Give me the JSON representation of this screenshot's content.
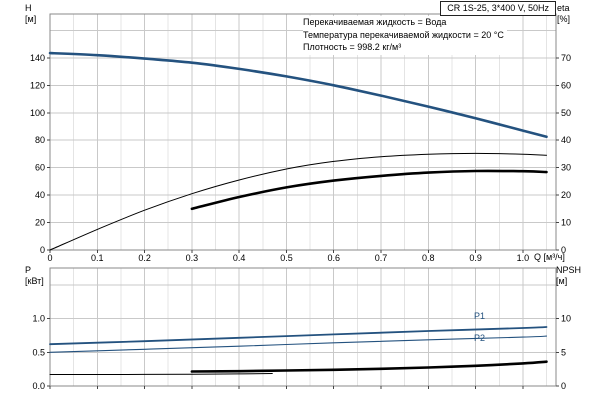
{
  "header": {
    "model": "CR 1S-25, 3*400 V, 50Hz"
  },
  "info_lines": [
    "Перекачиваемая жидкость = Вода",
    "Температура перекачиваемой жидкости = 20 °C",
    "Плотность = 998.2 кг/м³"
  ],
  "axis_labels": {
    "h": [
      "H",
      "[м]"
    ],
    "eta": [
      "eta",
      "[%]"
    ],
    "p": [
      "P",
      "[кВт]"
    ],
    "npsh": [
      "NPSH",
      "[м]"
    ],
    "q": "Q [м³/ч]"
  },
  "series_labels": {
    "p1": "P1",
    "p2": "P2"
  },
  "colors": {
    "curve_blue": "#24527f",
    "curve_black": "#000000",
    "grid_major": "#c9c9c9",
    "grid_minor": "#e4e4e4",
    "frame": "#8a8a8a",
    "tick": "#444444"
  },
  "chart_data": [
    {
      "type": "line",
      "title": "CR 1S-25, 3*400 V, 50Hz",
      "xlabel": "Q [м³/ч]",
      "ylabel_left": "H [м]",
      "ylabel_right": "eta [%]",
      "xlim": [
        0,
        1.07
      ],
      "ylim_left": [
        0,
        172
      ],
      "ylim_right": [
        0,
        86
      ],
      "grid": true,
      "x_ticks": {
        "values": [
          0,
          0.1,
          0.2,
          0.3,
          0.4,
          0.5,
          0.6,
          0.7,
          0.8,
          0.9,
          1.0
        ],
        "labels": [
          "0",
          "0.1",
          "0.2",
          "0.3",
          "0.4",
          "0.5",
          "0.6",
          "0.7",
          "0.8",
          "0.9",
          "1.0"
        ]
      },
      "left_ticks": {
        "values": [
          0,
          20,
          40,
          60,
          80,
          100,
          120,
          140
        ],
        "labels": [
          "0",
          "20",
          "40",
          "60",
          "80",
          "100",
          "120",
          "140"
        ]
      },
      "right_ticks": {
        "values": [
          0,
          10,
          20,
          30,
          40,
          50,
          60,
          70
        ],
        "labels": [
          "0",
          "10",
          "20",
          "30",
          "40",
          "50",
          "60",
          "70"
        ]
      },
      "series": [
        {
          "name": "H-curve",
          "axis": "left",
          "color": "#24527f",
          "width": 2.6,
          "x": [
            0,
            0.1,
            0.2,
            0.3,
            0.4,
            0.5,
            0.6,
            0.7,
            0.8,
            0.9,
            1.0,
            1.05
          ],
          "y": [
            143.5,
            142,
            139.5,
            136.5,
            132,
            126.5,
            120,
            112.5,
            104.5,
            96,
            87,
            82.5
          ]
        },
        {
          "name": "eta-pump",
          "axis": "right",
          "color": "#000000",
          "width": 1,
          "x": [
            0,
            0.1,
            0.2,
            0.3,
            0.4,
            0.5,
            0.6,
            0.7,
            0.8,
            0.9,
            1.0,
            1.05
          ],
          "y": [
            0,
            7.5,
            14.5,
            20.5,
            25.5,
            29.5,
            32.3,
            34,
            34.9,
            35.2,
            34.9,
            34.5
          ]
        },
        {
          "name": "eta-pump-plus-motor",
          "axis": "right",
          "color": "#000000",
          "width": 2.6,
          "x": [
            0.3,
            0.4,
            0.5,
            0.6,
            0.7,
            0.8,
            0.9,
            1.0,
            1.05
          ],
          "y": [
            15,
            19.3,
            22.8,
            25.3,
            27,
            28.2,
            28.8,
            28.7,
            28.4
          ]
        }
      ]
    },
    {
      "type": "line",
      "title": "",
      "xlabel": "",
      "ylabel_left": "P [кВт]",
      "ylabel_right": "NPSH [м]",
      "xlim": [
        0,
        1.07
      ],
      "ylim_left": [
        0,
        1.75
      ],
      "ylim_right": [
        0,
        17.5
      ],
      "grid": true,
      "x_ticks": {
        "values": [
          0,
          0.1,
          0.2,
          0.3,
          0.4,
          0.5,
          0.6,
          0.7,
          0.8,
          0.9,
          1.0
        ],
        "labels": []
      },
      "left_ticks": {
        "values": [
          0,
          0.5,
          1.0
        ],
        "labels": [
          "0.0",
          "0.5",
          "1.0"
        ]
      },
      "right_ticks": {
        "values": [
          0,
          5,
          10
        ],
        "labels": [
          "0",
          "5",
          "10"
        ]
      },
      "series": [
        {
          "name": "P1",
          "axis": "left",
          "color": "#24527f",
          "width": 1.8,
          "x": [
            0,
            0.2,
            0.4,
            0.6,
            0.8,
            1.0,
            1.05
          ],
          "y": [
            0.62,
            0.665,
            0.715,
            0.765,
            0.815,
            0.86,
            0.875
          ]
        },
        {
          "name": "P2",
          "axis": "left",
          "color": "#24527f",
          "width": 1.1,
          "x": [
            0,
            0.2,
            0.4,
            0.6,
            0.8,
            1.0,
            1.05
          ],
          "y": [
            0.5,
            0.545,
            0.59,
            0.64,
            0.685,
            0.725,
            0.74
          ]
        },
        {
          "name": "NPSH-thin",
          "axis": "right",
          "color": "#000000",
          "width": 1,
          "x": [
            0,
            0.1,
            0.2,
            0.3,
            0.4,
            0.47
          ],
          "y": [
            1.7,
            1.7,
            1.72,
            1.75,
            1.8,
            1.85
          ]
        },
        {
          "name": "NPSH",
          "axis": "right",
          "color": "#000000",
          "width": 2.6,
          "x": [
            0.3,
            0.4,
            0.5,
            0.6,
            0.7,
            0.8,
            0.9,
            1.0,
            1.05
          ],
          "y": [
            2.15,
            2.2,
            2.3,
            2.4,
            2.55,
            2.75,
            3.0,
            3.35,
            3.6
          ]
        }
      ]
    }
  ]
}
